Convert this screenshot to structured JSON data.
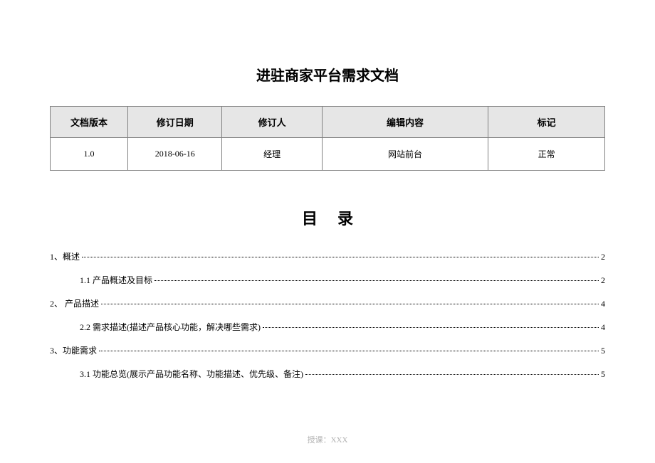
{
  "title": "进驻商家平台需求文档",
  "table": {
    "headers": {
      "version": "文档版本",
      "date": "修订日期",
      "author": "修订人",
      "content": "编辑内容",
      "mark": "标记"
    },
    "row": {
      "version": "1.0",
      "date": "2018-06-16",
      "author": "经理",
      "content": "网站前台",
      "mark": "正常"
    }
  },
  "toc": {
    "title": "目录",
    "items": [
      {
        "label": "1、概述",
        "page": "2",
        "level": 1
      },
      {
        "label": "1.1  产品概述及目标",
        "page": "2",
        "level": 2
      },
      {
        "label": "2、 产品描述",
        "page": "4",
        "level": 1
      },
      {
        "label": "2.2 需求描述(描述产品核心功能，解决哪些需求)",
        "page": "4",
        "level": 2
      },
      {
        "label": "3、功能需求",
        "page": "5",
        "level": 1
      },
      {
        "label": "3.1  功能总览(展示产品功能名称、功能描述、优先级、备注)",
        "page": "5",
        "level": 2
      }
    ]
  },
  "footer": "授课：XXX"
}
